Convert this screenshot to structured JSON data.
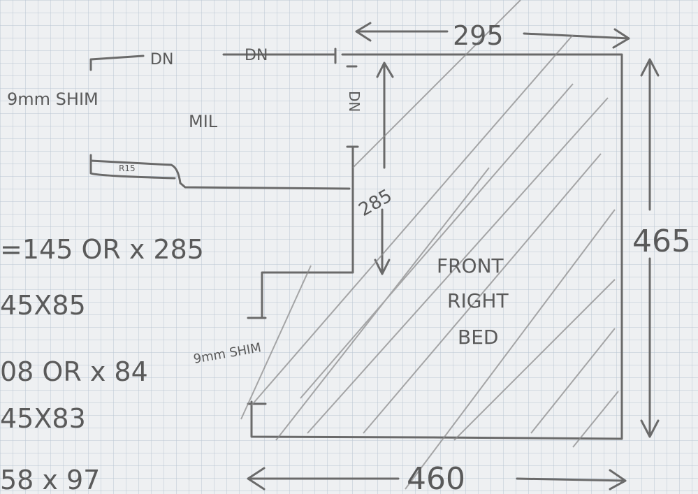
{
  "dimensions": {
    "top": "295",
    "right": "465",
    "bottom": "460",
    "inner": "285"
  },
  "labels": {
    "dn_1": "DN",
    "dn_2": "DN",
    "dn_3": "DN",
    "shim_top": "9mm SHIM",
    "mil": "MIL",
    "ledge": "R15",
    "bed": [
      "FRONT",
      "RIGHT",
      "BED"
    ],
    "shim_bottom": "9mm SHIM"
  },
  "notes": [
    "=145 OR x 285",
    "45X85",
    "08 OR x 84",
    "45X83",
    "58 x 97"
  ]
}
